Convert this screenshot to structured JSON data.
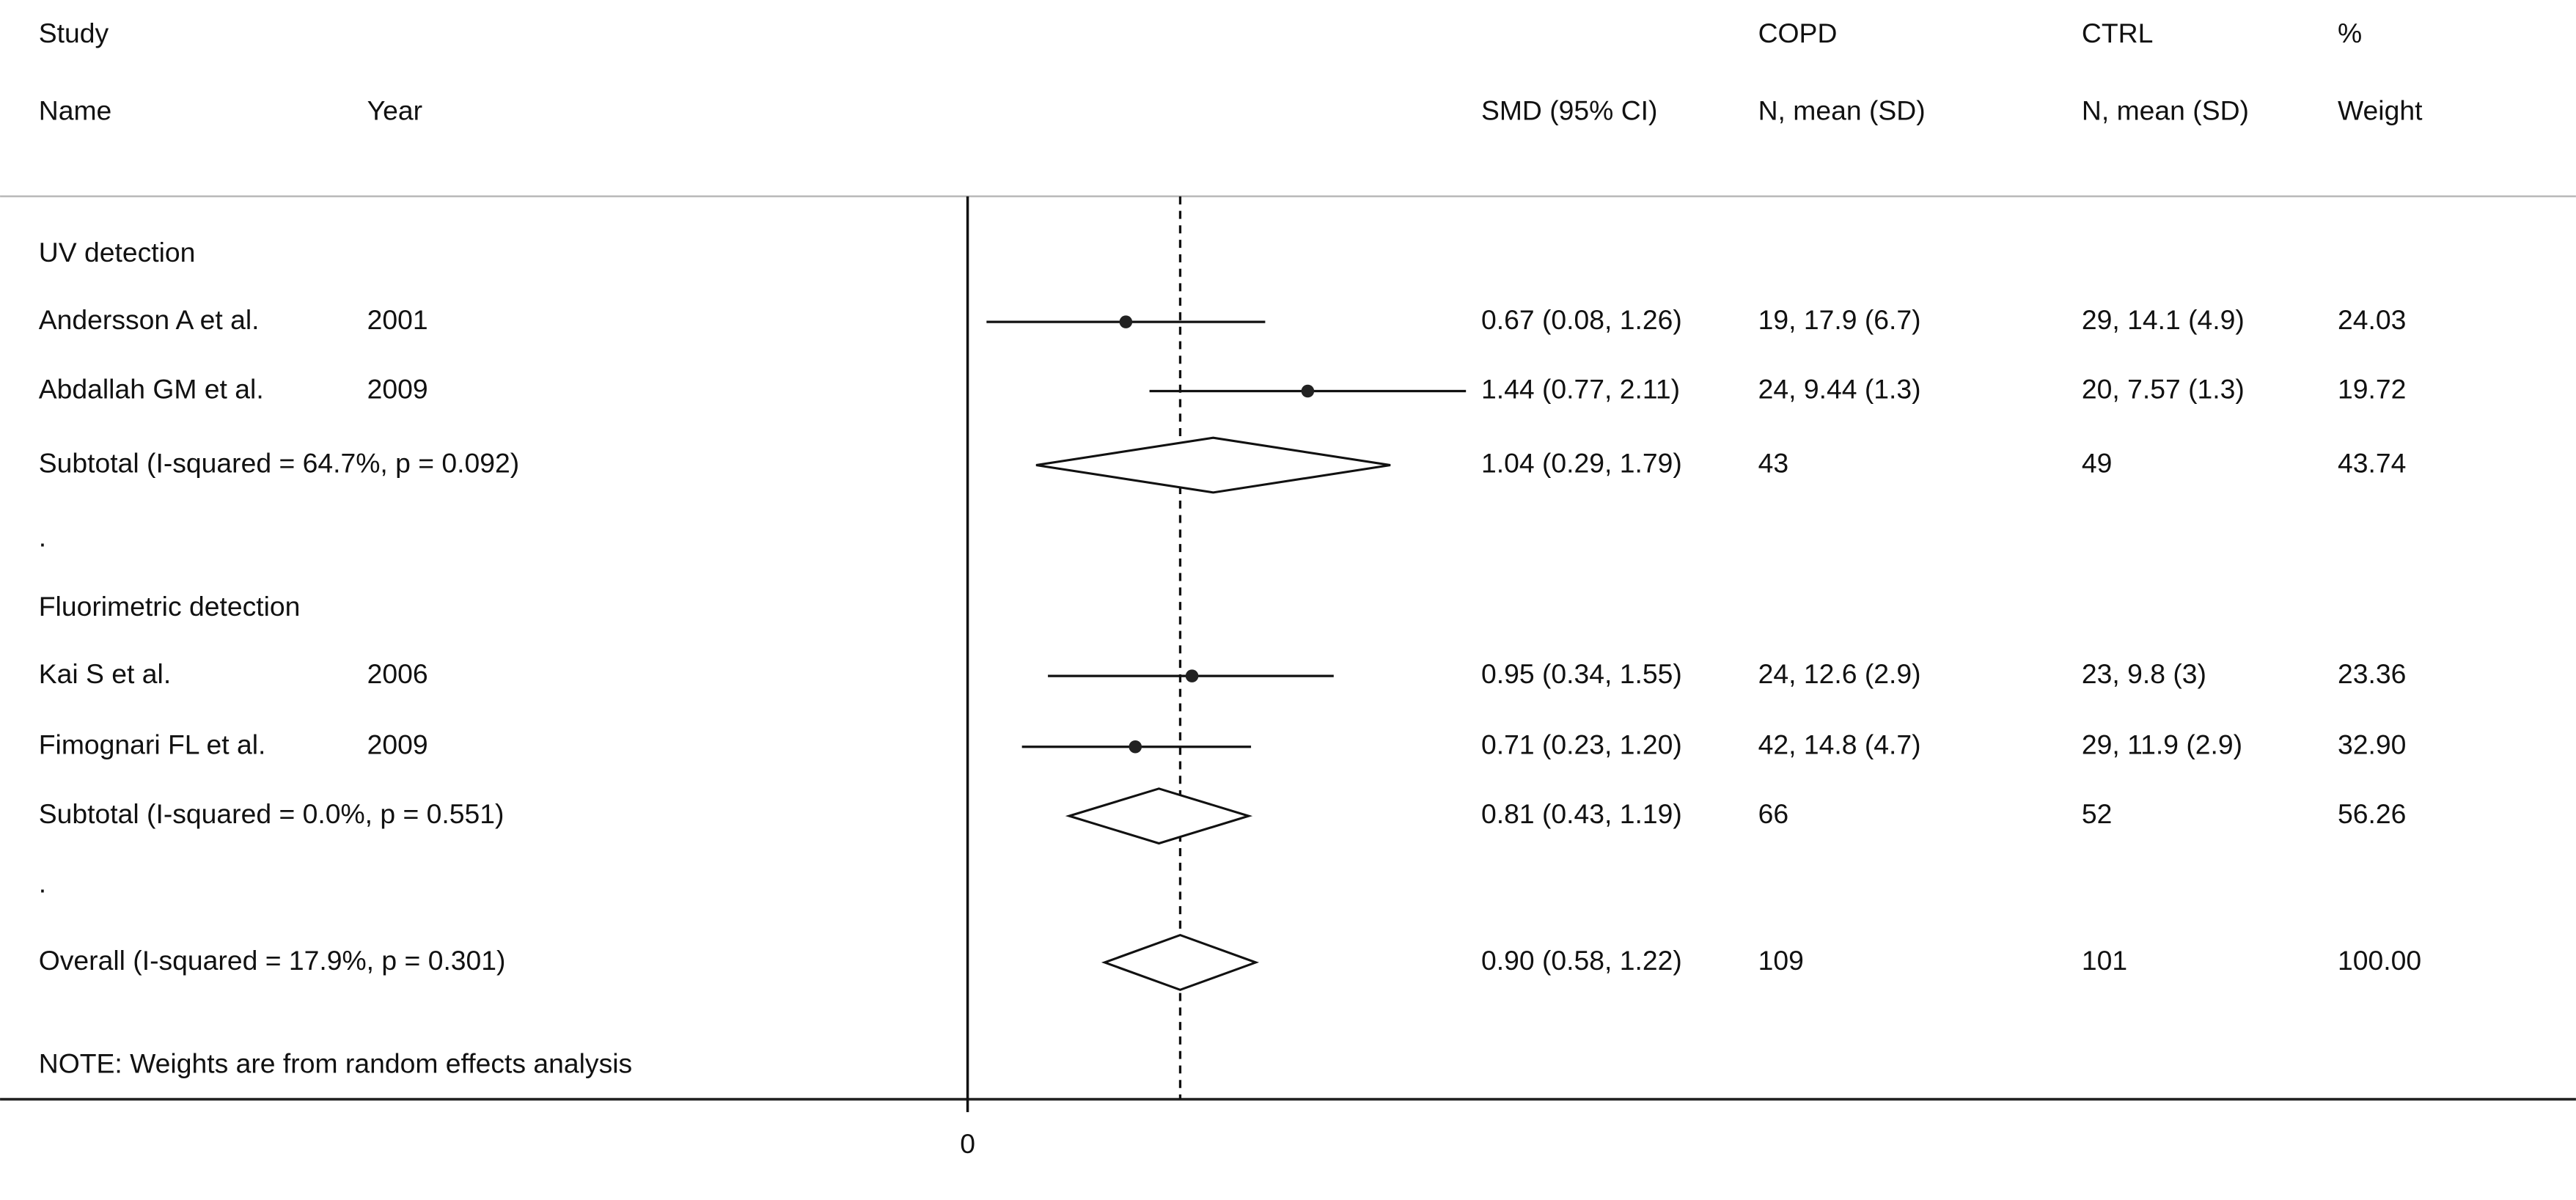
{
  "chart_data": {
    "type": "forest",
    "headers": {
      "study_top": "Study",
      "study": "Name",
      "year": "Year",
      "smd": "SMD (95% CI)",
      "copd_top": "COPD",
      "copd": "N, mean (SD)",
      "ctrl_top": "CTRL",
      "ctrl": "N, mean (SD)",
      "weight_top": "%",
      "weight": "Weight"
    },
    "rows": [
      {
        "study": "UV detection"
      },
      {
        "study": "Andersson A et al.",
        "year": "2001",
        "est": 0.67,
        "lower": 0.08,
        "upper": 1.26,
        "ci_label": "0.67 (0.08, 1.26)",
        "copd": "19, 17.9 (6.7)",
        "ctrl": "29, 14.1 (4.9)",
        "weight": "24.03"
      },
      {
        "study": "Abdallah GM et al.",
        "year": "2009",
        "est": 1.44,
        "lower": 0.77,
        "upper": 2.11,
        "ci_label": "1.44 (0.77, 2.11)",
        "copd": "24, 9.44 (1.3)",
        "ctrl": "20, 7.57 (1.3)",
        "weight": "19.72"
      },
      {
        "study": "Subtotal  (I-squared = 64.7%, p = 0.092)",
        "est": 1.04,
        "lower": 0.29,
        "upper": 1.79,
        "ci_label": "1.04 (0.29, 1.79)",
        "copd": "43",
        "ctrl": "49",
        "weight": "43.74"
      },
      {
        "study": "."
      },
      {
        "study": "Fluorimetric detection"
      },
      {
        "study": "Kai S et al.",
        "year": "2006",
        "est": 0.95,
        "lower": 0.34,
        "upper": 1.55,
        "ci_label": "0.95 (0.34, 1.55)",
        "copd": "24, 12.6 (2.9)",
        "ctrl": "23, 9.8 (3)",
        "weight": "23.36"
      },
      {
        "study": "Fimognari FL et al.",
        "year": "2009",
        "est": 0.71,
        "lower": 0.23,
        "upper": 1.2,
        "ci_label": "0.71 (0.23, 1.20)",
        "copd": "42, 14.8 (4.7)",
        "ctrl": "29, 11.9 (2.9)",
        "weight": "32.90"
      },
      {
        "study": "Subtotal  (I-squared = 0.0%, p = 0.551)",
        "est": 0.81,
        "lower": 0.43,
        "upper": 1.19,
        "ci_label": "0.81 (0.43, 1.19)",
        "copd": "66",
        "ctrl": "52",
        "weight": "56.26"
      },
      {
        "study": "."
      },
      {
        "study": "Overall  (I-squared = 17.9%, p = 0.301)",
        "est": 0.9,
        "lower": 0.58,
        "upper": 1.22,
        "ci_label": "0.90 (0.58, 1.22)",
        "copd": "109",
        "ctrl": "101",
        "weight": "100.00"
      }
    ],
    "note": "NOTE: Weights are from random effects analysis",
    "xlim": [
      0,
      2.2
    ],
    "xticks": [
      0
    ],
    "reference_line": 0.9
  }
}
